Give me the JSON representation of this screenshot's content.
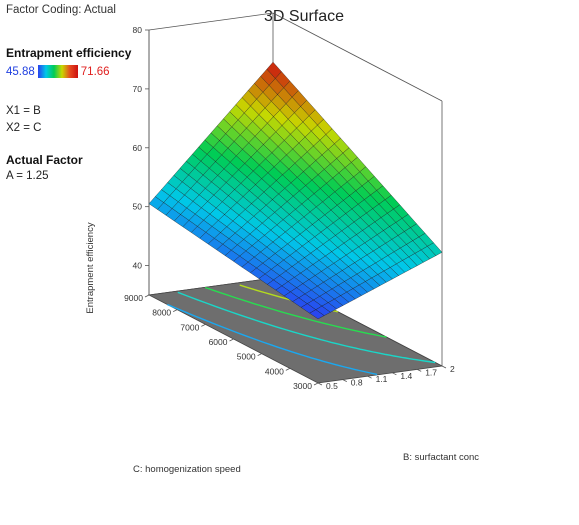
{
  "factor_coding": "Factor Coding: Actual",
  "response_name": "Entrapment efficiency",
  "color_min": "45.88",
  "color_max": "71.66",
  "x1": "X1 = B",
  "x2": "X2 = C",
  "actual_factor_title": "Actual Factor",
  "actual_factor_value": "A = 1.25",
  "chart_data": {
    "type": "surface3d",
    "title": "3D Surface",
    "zlabel": "Entrapment efficiency",
    "xlabel": "B: surfactant conc",
    "ylabel": "C: homogenization speed",
    "x_ticks": [
      "0.5",
      "0.8",
      "1.1",
      "1.4",
      "1.7",
      "2"
    ],
    "y_ticks": [
      "3000",
      "4000",
      "5000",
      "6000",
      "7000",
      "8000",
      "9000"
    ],
    "z_ticks": [
      "40",
      "50",
      "60",
      "70",
      "80"
    ],
    "xlim": [
      0.5,
      2
    ],
    "ylim": [
      3000,
      9000
    ],
    "zlim": [
      35,
      80
    ],
    "corner_values": {
      "B0.5_C3000": 45.88,
      "B2_C3000": 54.3,
      "B0.5_C9000": 50.5,
      "B2_C9000": 71.66
    },
    "colors": {
      "low": "#2b3ff0",
      "mid_low": "#00c8e8",
      "mid": "#00cc55",
      "mid_high": "#c8d800",
      "high": "#cc1010",
      "floor": "#6e6e6e"
    }
  }
}
